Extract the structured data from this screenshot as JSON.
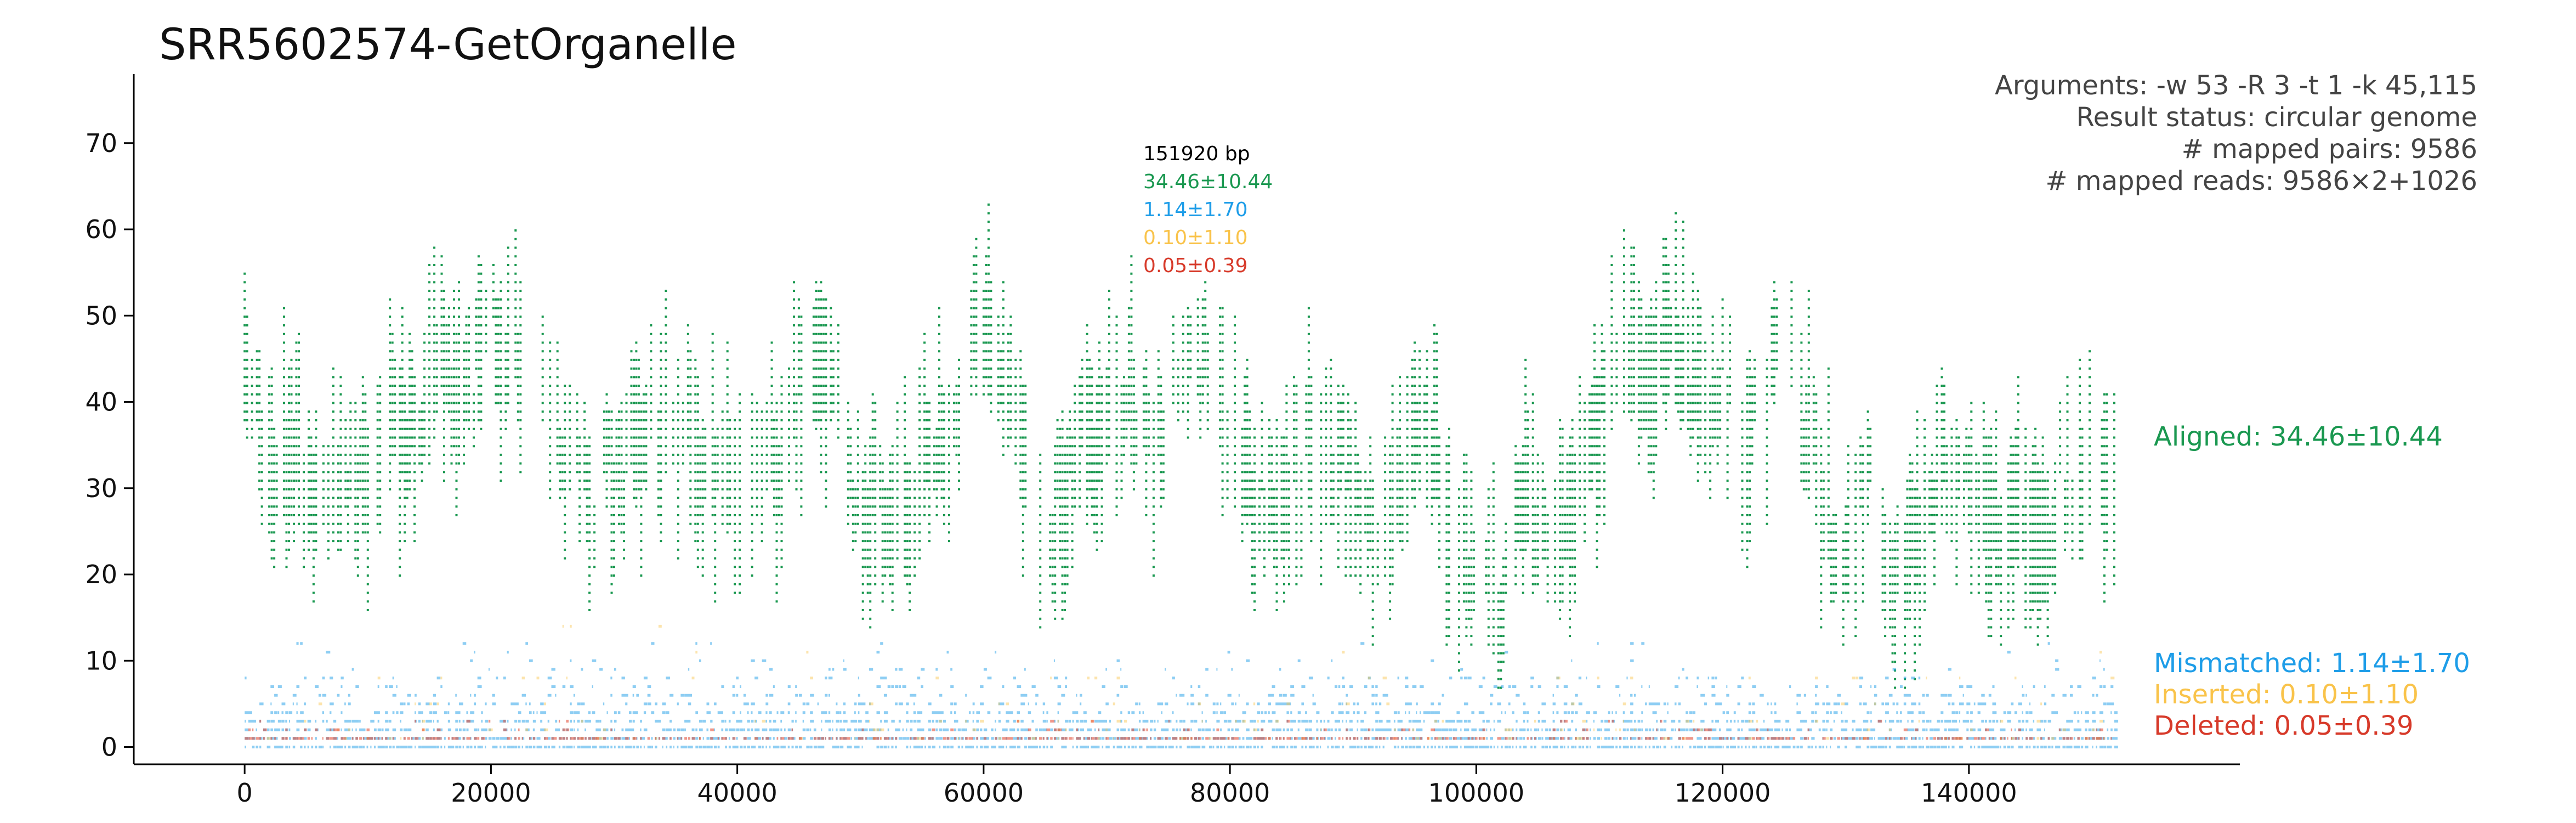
{
  "chart_data": {
    "type": "scatter",
    "title": "SRR5602574-GetOrganelle",
    "xlim": [
      -9000,
      162000
    ],
    "ylim": [
      -2,
      78
    ],
    "x_ticks": [
      0,
      20000,
      40000,
      60000,
      80000,
      100000,
      120000,
      140000
    ],
    "y_ticks": [
      0,
      10,
      20,
      30,
      40,
      50,
      60,
      70
    ],
    "genome_length": 151920,
    "arguments": "Arguments: -w 53 -R 3 -t 1 -k 45,115",
    "result_status": "Result status: circular genome",
    "mapped_pairs": "# mapped pairs: 9586",
    "mapped_reads": "# mapped reads: 9586×2+1026",
    "stats_box": {
      "length": "151920 bp",
      "aligned": "34.46±10.44",
      "mismatched": "1.14±1.70",
      "inserted": "0.10±1.10",
      "deleted": "0.05±0.39"
    },
    "series": [
      {
        "name": "Aligned: 34.46±10.44",
        "color": "#1a9850",
        "mean": 34.46,
        "sd": 10.44,
        "profile_x": [
          0,
          2000,
          4000,
          6000,
          8000,
          10000,
          12000,
          14000,
          16000,
          18000,
          20000,
          22000,
          24000,
          26000,
          28000,
          30000,
          32000,
          34000,
          36000,
          38000,
          40000,
          42000,
          44000,
          46000,
          48000,
          50000,
          52000,
          54000,
          56000,
          58000,
          60000,
          62000,
          64000,
          66000,
          68000,
          70000,
          72000,
          74000,
          76000,
          78000,
          80000,
          82000,
          84000,
          86000,
          88000,
          90000,
          92000,
          94000,
          96000,
          98000,
          100000,
          102000,
          104000,
          106000,
          108000,
          110000,
          112000,
          114000,
          116000,
          118000,
          120000,
          122000,
          124000,
          126000,
          128000,
          130000,
          132000,
          134000,
          136000,
          138000,
          140000,
          142000,
          144000,
          146000,
          148000,
          150000,
          151920
        ],
        "profile_y": [
          42,
          32,
          35,
          30,
          34,
          31,
          36,
          38,
          44,
          40,
          48,
          46,
          40,
          33,
          28,
          32,
          34,
          40,
          37,
          32,
          33,
          30,
          38,
          44,
          40,
          30,
          28,
          29,
          34,
          42,
          48,
          40,
          26,
          28,
          34,
          38,
          40,
          35,
          42,
          44,
          38,
          30,
          28,
          33,
          36,
          30,
          24,
          32,
          40,
          26,
          22,
          15,
          28,
          22,
          30,
          38,
          44,
          40,
          48,
          38,
          42,
          36,
          42,
          44,
          30,
          22,
          34,
          18,
          26,
          34,
          30,
          24,
          30,
          26,
          32,
          30,
          36
        ]
      },
      {
        "name": "Mismatched: 1.14±1.70",
        "color": "#1e9de8",
        "mean": 1.14,
        "sd": 1.7
      },
      {
        "name": "Inserted: 0.10±1.10",
        "color": "#f9c34a",
        "mean": 0.1,
        "sd": 1.1
      },
      {
        "name": "Deleted: 0.05±0.39",
        "color": "#e0422a",
        "mean": 0.05,
        "sd": 0.39
      }
    ]
  }
}
